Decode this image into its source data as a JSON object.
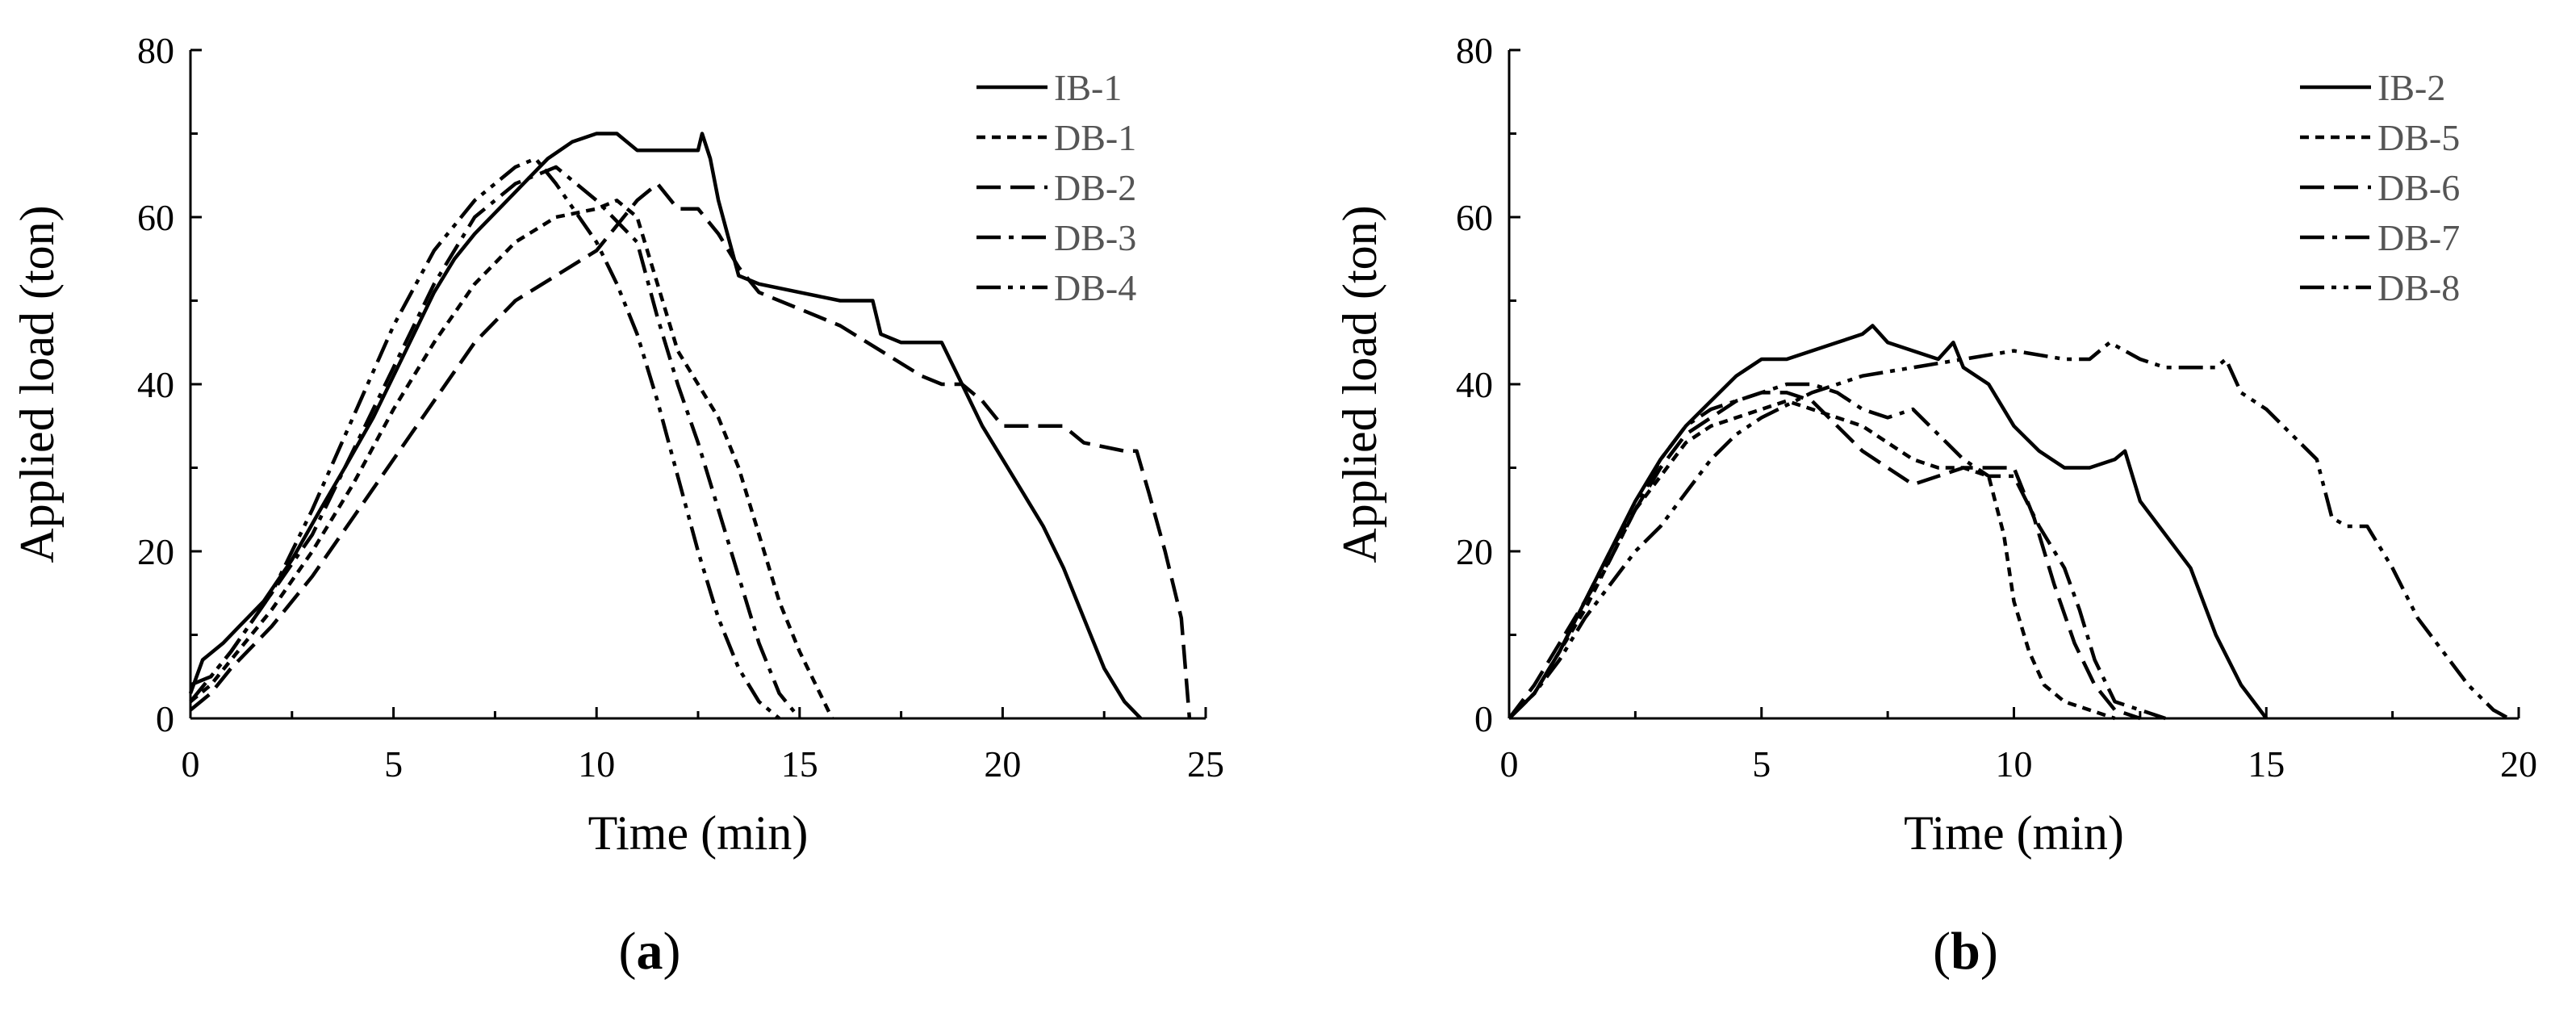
{
  "chart_data": [
    {
      "type": "line",
      "panel_label": "(a)",
      "panel_label_parts": [
        "(",
        "a",
        ")"
      ],
      "xlabel": "Time (min)",
      "ylabel": "Applied load (ton)",
      "xlim": [
        0,
        25
      ],
      "ylim": [
        0,
        80
      ],
      "xticks": [
        "0",
        "5",
        "10",
        "15",
        "20",
        "25"
      ],
      "yticks": [
        "0",
        "20",
        "40",
        "60",
        "80"
      ],
      "legend_position": "top-right",
      "series": [
        {
          "name": "IB-1",
          "dash": "solid",
          "x": [
            0,
            0.3,
            0.8,
            1.2,
            1.8,
            2.5,
            3.2,
            3.8,
            4.5,
            5.0,
            5.5,
            6.0,
            6.5,
            7.0,
            7.6,
            8.2,
            8.8,
            9.4,
            10.0,
            10.5,
            11.0,
            12.0,
            12.5,
            12.6,
            12.8,
            13.0,
            13.5,
            14.0,
            15.0,
            16.0,
            16.8,
            17.0,
            17.5,
            18.5,
            19.0,
            19.5,
            20.0,
            20.5,
            21.0,
            21.5,
            22.0,
            22.5,
            23.0,
            23.4
          ],
          "y": [
            3,
            7,
            9,
            11,
            14,
            19,
            25,
            30,
            36,
            41,
            46,
            51,
            55,
            58,
            61,
            64,
            67,
            69,
            70,
            70,
            68,
            68,
            68,
            70,
            67,
            62,
            53,
            52,
            51,
            50,
            50,
            46,
            45,
            45,
            40,
            35,
            31,
            27,
            23,
            18,
            12,
            6,
            2,
            0
          ]
        },
        {
          "name": "DB-1",
          "dash": "short",
          "x": [
            0,
            0.5,
            1,
            2,
            3,
            4,
            5,
            6,
            7,
            8,
            9,
            10,
            10.5,
            11,
            11.5,
            12,
            12.5,
            13,
            13.5,
            14,
            14.5,
            15,
            15.5,
            15.8
          ],
          "y": [
            2,
            4,
            7,
            13,
            20,
            28,
            37,
            45,
            52,
            57,
            60,
            61,
            62,
            60,
            52,
            44,
            40,
            36,
            30,
            22,
            14,
            8,
            3,
            0
          ]
        },
        {
          "name": "DB-2",
          "dash": "long",
          "x": [
            0,
            0.5,
            1,
            2,
            3,
            4,
            5,
            6,
            7,
            8,
            9,
            10,
            10.5,
            11.0,
            11.5,
            12.0,
            12.5,
            13.0,
            13.5,
            14.0,
            15.0,
            16.0,
            17.0,
            18.0,
            18.5,
            19.0,
            19.5,
            20.0,
            21.0,
            21.5,
            22.0,
            23.0,
            23.3,
            23.6,
            24.0,
            24.4,
            24.6
          ],
          "y": [
            1,
            3,
            6,
            11,
            17,
            24,
            31,
            38,
            45,
            50,
            53,
            56,
            59,
            62,
            64,
            61,
            61,
            58,
            54,
            51,
            49,
            47,
            44,
            41,
            40,
            40,
            38,
            35,
            35,
            35,
            33,
            32,
            32,
            27,
            20,
            12,
            0
          ]
        },
        {
          "name": "DB-3",
          "dash": "dashdot",
          "x": [
            0,
            0.5,
            1,
            2,
            3,
            4,
            5,
            6,
            7,
            8,
            9,
            10,
            11,
            11.5,
            12,
            12.5,
            13,
            13.5,
            14,
            14.5,
            15
          ],
          "y": [
            4,
            5,
            8,
            15,
            22,
            32,
            42,
            52,
            60,
            64,
            66,
            62,
            57,
            48,
            40,
            33,
            25,
            17,
            9,
            3,
            0
          ]
        },
        {
          "name": "DB-4",
          "dash": "dashdotdot",
          "x": [
            0,
            0.5,
            1,
            2,
            3,
            4,
            5,
            6,
            7,
            8,
            8.5,
            9,
            10,
            10.5,
            11,
            11.5,
            12,
            12.5,
            13,
            13.5,
            14,
            14.5
          ],
          "y": [
            2,
            5,
            8,
            15,
            25,
            36,
            47,
            56,
            62,
            66,
            67,
            64,
            57,
            52,
            46,
            38,
            29,
            20,
            12,
            6,
            2,
            0
          ]
        }
      ],
      "legend": [
        "IB-1",
        "DB-1",
        "DB-2",
        "DB-3",
        "DB-4"
      ]
    },
    {
      "type": "line",
      "panel_label": "(b)",
      "panel_label_parts": [
        "(",
        "b",
        ")"
      ],
      "xlabel": "Time (min)",
      "ylabel": "Applied load (ton)",
      "xlim": [
        0,
        20
      ],
      "ylim": [
        0,
        80
      ],
      "xticks": [
        "0",
        "5",
        "10",
        "15",
        "20"
      ],
      "yticks": [
        "0",
        "20",
        "40",
        "60",
        "80"
      ],
      "legend_position": "top-right",
      "series": [
        {
          "name": "IB-2",
          "dash": "solid",
          "x": [
            0,
            0.5,
            1,
            1.5,
            2,
            2.5,
            3,
            3.5,
            4,
            4.5,
            5,
            5.5,
            6,
            6.5,
            7,
            7.2,
            7.5,
            8,
            8.5,
            8.8,
            9.0,
            9.5,
            10,
            10.5,
            11,
            11.5,
            12,
            12.2,
            12.5,
            13,
            13.5,
            14,
            14.5,
            15
          ],
          "y": [
            0,
            3,
            8,
            14,
            20,
            26,
            31,
            35,
            38,
            41,
            43,
            43,
            44,
            45,
            46,
            47,
            45,
            44,
            43,
            45,
            42,
            40,
            35,
            32,
            30,
            30,
            31,
            32,
            26,
            22,
            18,
            10,
            4,
            0
          ]
        },
        {
          "name": "DB-5",
          "dash": "short",
          "x": [
            0,
            0.5,
            1,
            1.5,
            2,
            2.5,
            3,
            3.5,
            4,
            4.5,
            5,
            5.5,
            6,
            6.5,
            7,
            7.5,
            8,
            8.5,
            9,
            9.5,
            9.8,
            10.0,
            10.3,
            10.6,
            11,
            11.5,
            12
          ],
          "y": [
            0,
            3,
            8,
            13,
            19,
            25,
            29,
            33,
            35,
            36,
            37,
            38,
            37,
            36,
            35,
            33,
            31,
            30,
            30,
            29,
            22,
            14,
            8,
            4,
            2,
            1,
            0
          ]
        },
        {
          "name": "DB-6",
          "dash": "long",
          "x": [
            0,
            0.5,
            1,
            1.5,
            2,
            2.5,
            3,
            3.5,
            4,
            4.5,
            5,
            5.5,
            6,
            6.5,
            7,
            7.5,
            8,
            8.5,
            9,
            9.5,
            10.0,
            10.4,
            10.8,
            11.2,
            11.6,
            12.0,
            12.5
          ],
          "y": [
            0,
            4,
            9,
            14,
            20,
            25,
            30,
            34,
            36,
            38,
            39,
            39,
            38,
            35,
            32,
            30,
            28,
            29,
            30,
            30,
            30,
            24,
            16,
            9,
            4,
            1,
            0
          ]
        },
        {
          "name": "DB-7",
          "dash": "dashdot",
          "x": [
            0,
            0.5,
            1,
            1.5,
            2,
            2.5,
            3,
            3.5,
            4,
            4.5,
            5,
            5.5,
            6,
            6.5,
            7,
            7.5,
            8,
            8.5,
            9,
            9.5,
            10,
            10.5,
            11,
            11.3,
            11.6,
            12.0,
            12.5,
            13.0
          ],
          "y": [
            0,
            3,
            8,
            14,
            19,
            25,
            31,
            35,
            37,
            38,
            39,
            40,
            40,
            39,
            37,
            36,
            37,
            34,
            31,
            29,
            29,
            23,
            18,
            13,
            7,
            2,
            1,
            0
          ]
        },
        {
          "name": "DB-8",
          "dash": "dashdotdot",
          "x": [
            0,
            0.5,
            1,
            1.5,
            2,
            2.5,
            3,
            3.5,
            4,
            4.5,
            5,
            6,
            7,
            8,
            9,
            10,
            11,
            11.5,
            11.9,
            12.5,
            13,
            13.5,
            14,
            14.2,
            14.5,
            15,
            15.5,
            16,
            16.3,
            16.6,
            17,
            17.5,
            18,
            18.5,
            19,
            19.5,
            19.8
          ],
          "y": [
            0,
            3,
            7,
            12,
            16,
            20,
            23,
            27,
            31,
            34,
            36,
            39,
            41,
            42,
            43,
            44,
            43,
            43,
            45,
            43,
            42,
            42,
            42,
            43,
            39,
            37,
            34,
            31,
            24,
            23,
            23,
            18,
            12,
            8,
            4,
            1,
            0
          ]
        }
      ],
      "legend": [
        "IB-2",
        "DB-5",
        "DB-6",
        "DB-7",
        "DB-8"
      ]
    }
  ]
}
